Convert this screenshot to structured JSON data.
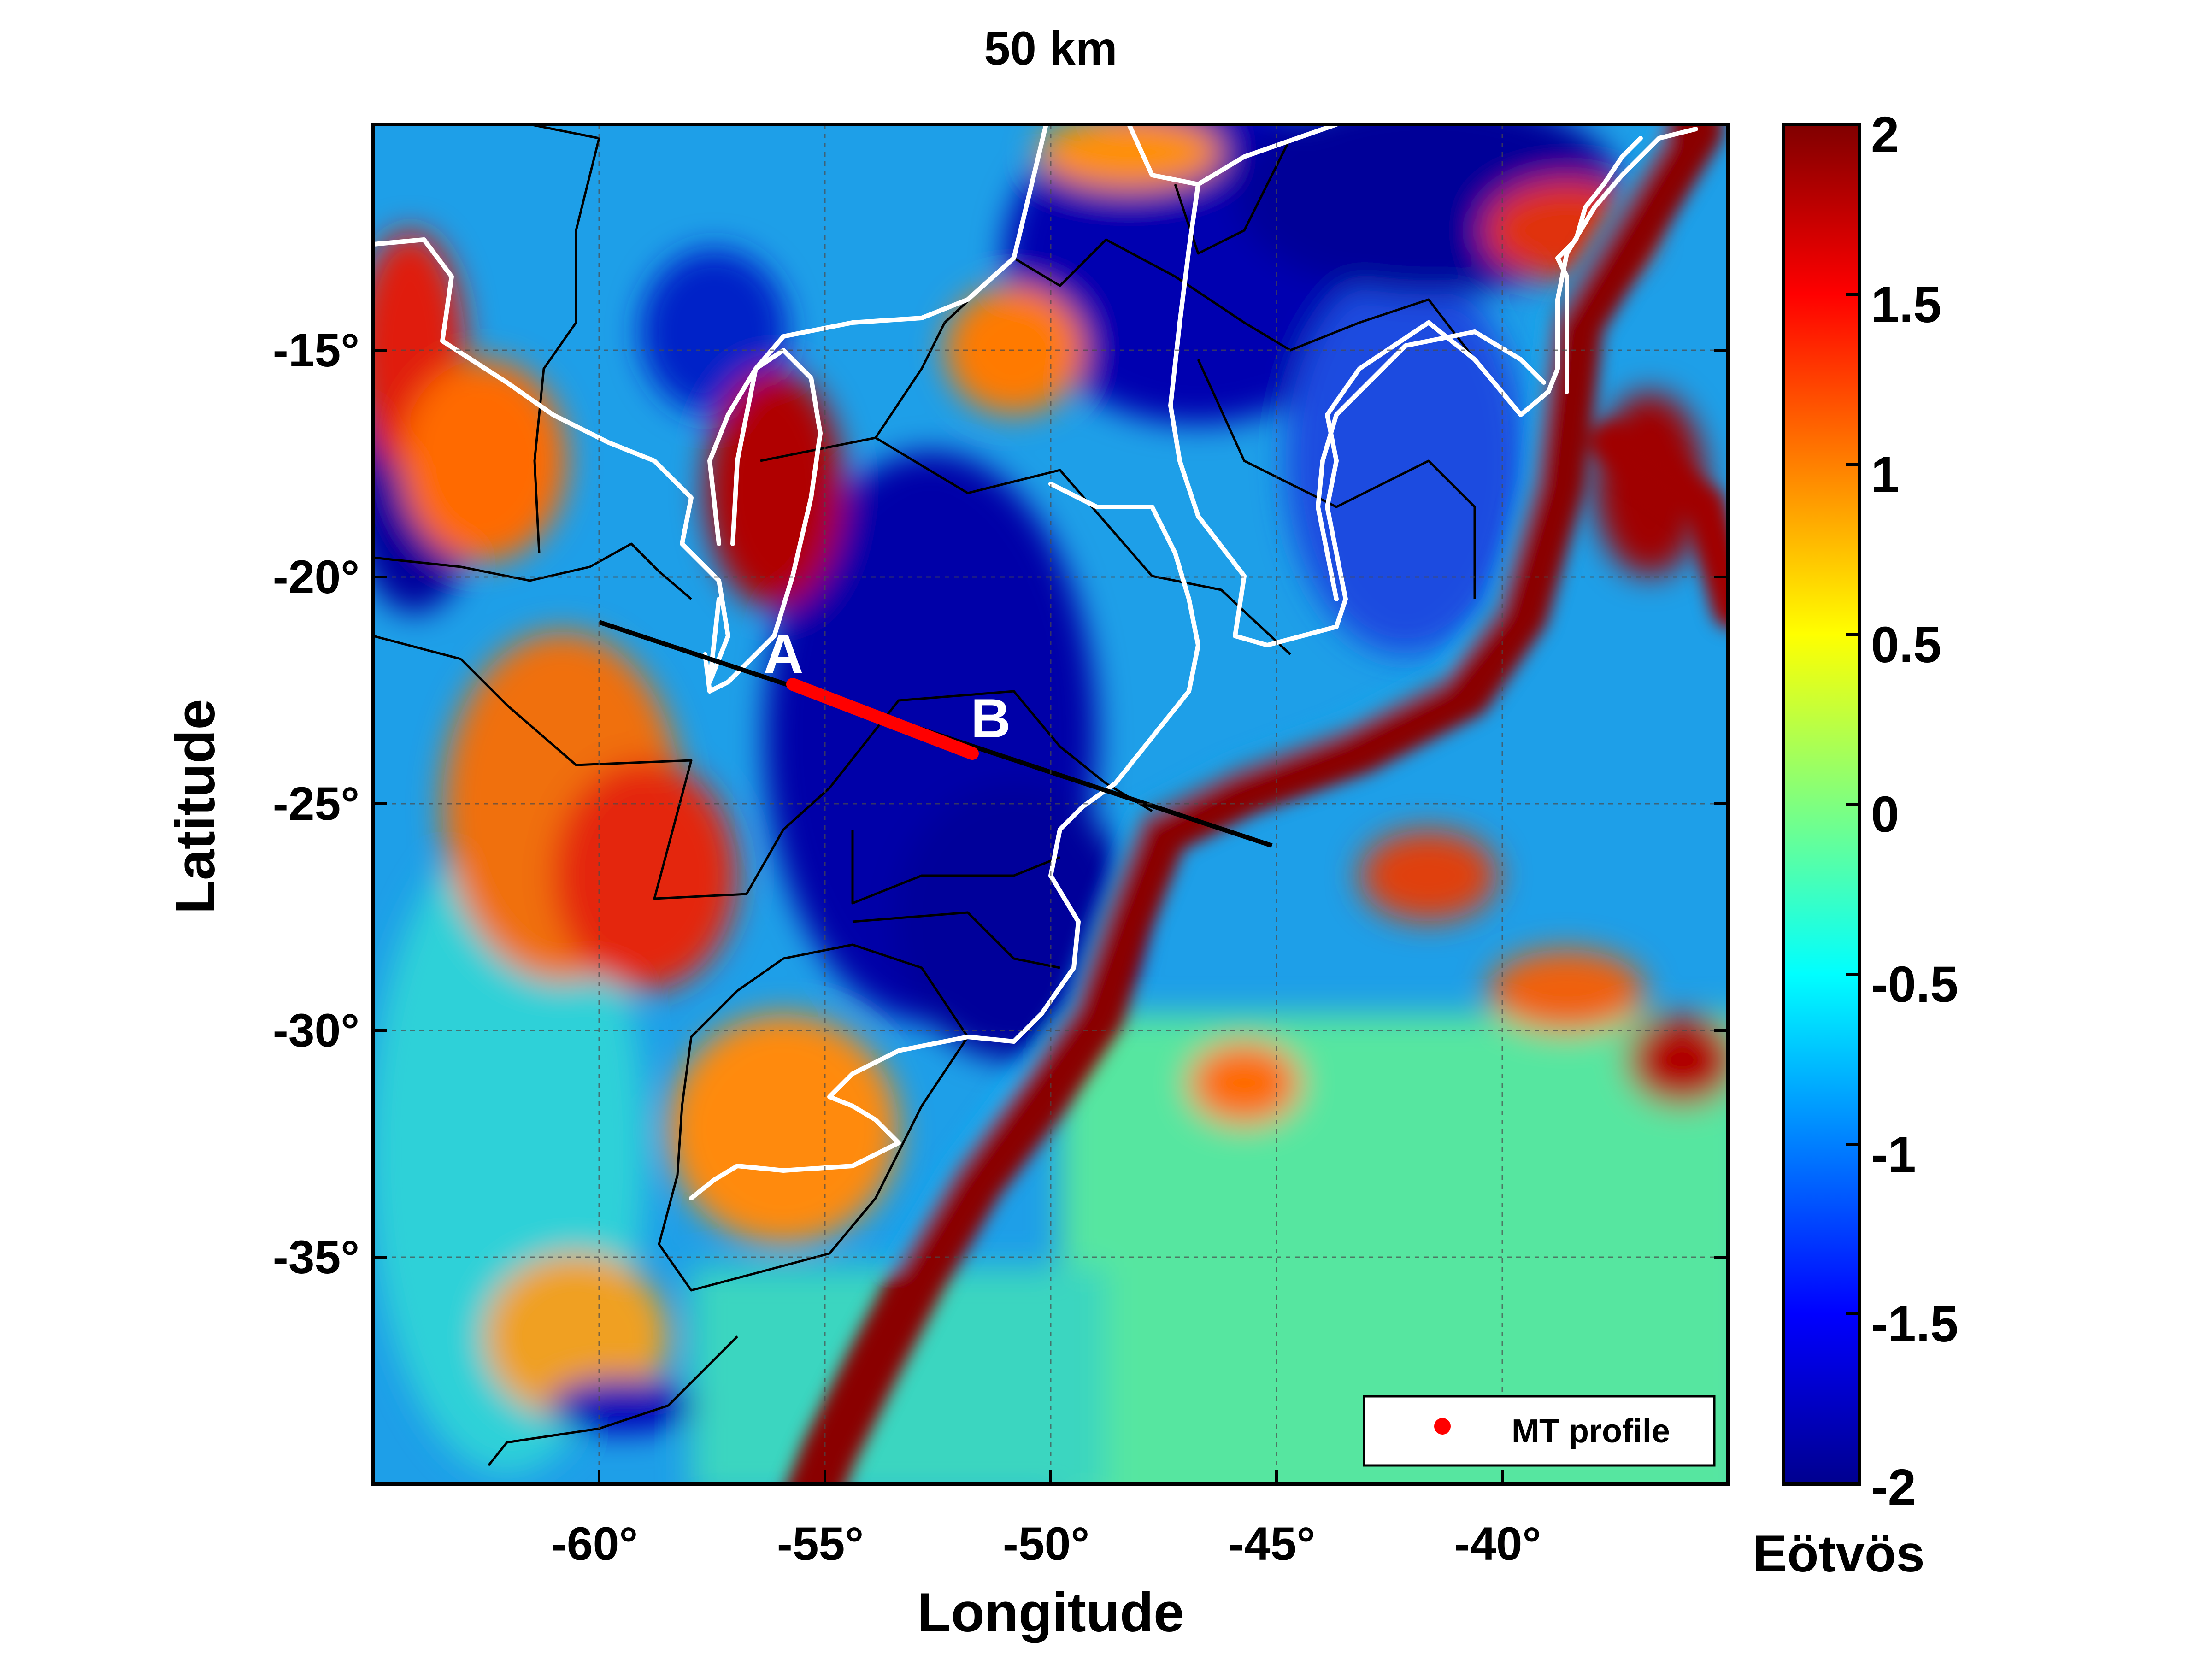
{
  "figure": {
    "title": "50 km",
    "xlabel": "Longitude",
    "ylabel": "Latitude",
    "x_ticks": [
      "-60°",
      "-55°",
      "-50°",
      "-45°",
      "-40°"
    ],
    "y_ticks": [
      "-15°",
      "-20°",
      "-25°",
      "-30°",
      "-35°"
    ],
    "colorbar": {
      "unit_label": "Eötvös",
      "ticks": [
        "2",
        "1.5",
        "1",
        "0.5",
        "0",
        "-0.5",
        "-1",
        "-1.5",
        "-2"
      ],
      "range": [
        -2,
        2
      ],
      "colormap": "jet"
    },
    "legend": {
      "label": "MT profile",
      "marker_color": "#ff0000"
    },
    "profile": {
      "start_label": "A",
      "end_label": "B"
    }
  },
  "map_extent": {
    "lon": [
      -65,
      -35
    ],
    "lat": [
      -40,
      -10
    ]
  },
  "colors": {
    "plate_boundary": "#ffffff",
    "country_borders": "#000000",
    "profile_line": "#000000",
    "mt_profile": "#ff0000",
    "background_low": "#00008f",
    "background_high": "#800000"
  }
}
